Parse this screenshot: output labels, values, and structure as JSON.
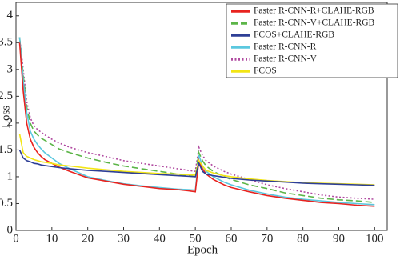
{
  "chart_data": {
    "type": "line",
    "x_label": "Epoch",
    "y_label": "Loss",
    "x": [
      1,
      2,
      3,
      4,
      5,
      6,
      7,
      8,
      10,
      12,
      15,
      20,
      25,
      30,
      35,
      40,
      45,
      48,
      50,
      51,
      52,
      53,
      55,
      58,
      60,
      65,
      70,
      75,
      80,
      85,
      90,
      95,
      100
    ],
    "xlim": [
      0,
      103.5
    ],
    "ylim": [
      0,
      4.25
    ],
    "xticks": [
      0,
      10,
      20,
      30,
      40,
      50,
      60,
      70,
      80,
      90,
      100
    ],
    "yticks": [
      0,
      0.5,
      1,
      1.5,
      2,
      2.5,
      3,
      3.5,
      4
    ],
    "legend": "upper right",
    "series": [
      {
        "name": "Faster R-CNN-R+CLAHE-RGB",
        "color": "#e8231f",
        "dash": "solid",
        "values": [
          3.5,
          2.6,
          2.0,
          1.7,
          1.55,
          1.45,
          1.38,
          1.32,
          1.25,
          1.18,
          1.1,
          0.98,
          0.92,
          0.86,
          0.82,
          0.78,
          0.76,
          0.74,
          0.72,
          1.3,
          1.15,
          1.05,
          0.95,
          0.85,
          0.8,
          0.72,
          0.65,
          0.6,
          0.56,
          0.52,
          0.5,
          0.47,
          0.45
        ]
      },
      {
        "name": "Faster R-CNN-V+CLAHE-RGB",
        "color": "#5cb548",
        "dash": "dashed",
        "values": [
          3.6,
          2.9,
          2.3,
          2.0,
          1.85,
          1.78,
          1.72,
          1.68,
          1.6,
          1.52,
          1.45,
          1.35,
          1.27,
          1.2,
          1.15,
          1.1,
          1.05,
          1.02,
          1.0,
          1.45,
          1.3,
          1.2,
          1.1,
          1.0,
          0.95,
          0.85,
          0.78,
          0.7,
          0.65,
          0.6,
          0.57,
          0.55,
          0.52
        ]
      },
      {
        "name": "FCOS+CLAHE-RGB",
        "color": "#2e3f96",
        "dash": "solid",
        "values": [
          1.5,
          1.35,
          1.3,
          1.28,
          1.25,
          1.24,
          1.22,
          1.21,
          1.19,
          1.17,
          1.15,
          1.12,
          1.1,
          1.08,
          1.06,
          1.04,
          1.02,
          1.01,
          1.0,
          1.25,
          1.1,
          1.05,
          1.02,
          0.99,
          0.97,
          0.94,
          0.92,
          0.9,
          0.88,
          0.87,
          0.86,
          0.85,
          0.84
        ]
      },
      {
        "name": "Faster R-CNN-R",
        "color": "#5bc8df",
        "dash": "solid",
        "values": [
          3.6,
          2.8,
          2.2,
          1.85,
          1.7,
          1.6,
          1.52,
          1.45,
          1.35,
          1.25,
          1.15,
          1.0,
          0.93,
          0.87,
          0.83,
          0.8,
          0.77,
          0.76,
          0.75,
          1.4,
          1.2,
          1.1,
          1.0,
          0.9,
          0.85,
          0.75,
          0.68,
          0.62,
          0.58,
          0.55,
          0.52,
          0.5,
          0.48
        ]
      },
      {
        "name": "Faster R-CNN-V",
        "color": "#b04aa0",
        "dash": "dotted",
        "values": [
          3.6,
          3.0,
          2.4,
          2.1,
          1.95,
          1.88,
          1.83,
          1.78,
          1.7,
          1.63,
          1.55,
          1.45,
          1.38,
          1.3,
          1.25,
          1.2,
          1.15,
          1.12,
          1.1,
          1.55,
          1.4,
          1.3,
          1.2,
          1.1,
          1.05,
          0.95,
          0.85,
          0.78,
          0.72,
          0.66,
          0.62,
          0.6,
          0.58
        ]
      },
      {
        "name": "FCOS",
        "color": "#f3e515",
        "dash": "solid",
        "values": [
          1.8,
          1.45,
          1.38,
          1.35,
          1.32,
          1.3,
          1.28,
          1.27,
          1.25,
          1.22,
          1.2,
          1.16,
          1.13,
          1.1,
          1.08,
          1.06,
          1.05,
          1.04,
          1.03,
          1.3,
          1.2,
          1.12,
          1.07,
          1.02,
          1.0,
          0.96,
          0.93,
          0.91,
          0.89,
          0.88,
          0.87,
          0.86,
          0.85
        ]
      }
    ]
  }
}
